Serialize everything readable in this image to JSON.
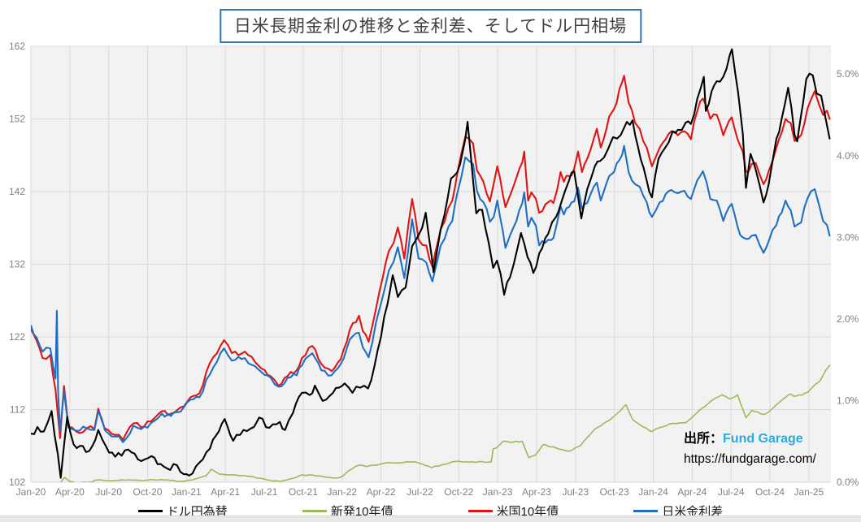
{
  "title": "日米長期金利の推移と金利差、そしてドル円相場",
  "source": {
    "prefix": "出所：",
    "name": "Fund Garage",
    "url": "https://fundgarage.com/"
  },
  "colors": {
    "usdjpy": "#000000",
    "jgb10y": "#9bbb59",
    "ust10y": "#e11414",
    "spread": "#1f70c1",
    "title_border": "#2e75b6",
    "title_text": "#404040",
    "source_name": "#29abe2",
    "plot_bg": "#f2f2f2",
    "grid": "#dadada",
    "axis_text": "#808080"
  },
  "chart_data": {
    "type": "line",
    "title": "日米長期金利の推移と金利差、そしてドル円相場",
    "x_unit": "months since Jan-2020",
    "x_domain": [
      0,
      61.7
    ],
    "x_tick_months": [
      0,
      3,
      6,
      9,
      12,
      15,
      18,
      21,
      24,
      27,
      30,
      33,
      36,
      39,
      42,
      45,
      48,
      51,
      54,
      57,
      60
    ],
    "x_tick_labels": [
      "Jan-20",
      "Apr-20",
      "Jul-20",
      "Oct-20",
      "Jan-21",
      "Apr-21",
      "Jul-21",
      "Oct-21",
      "Jan-22",
      "Apr-22",
      "Jul-22",
      "Oct-22",
      "Jan-23",
      "Apr-23",
      "Jul-23",
      "Oct-23",
      "Jan-24",
      "Apr-24",
      "Jul-24",
      "Oct-24",
      "Jan-25"
    ],
    "left_axis": {
      "min": 102,
      "max": 162,
      "tick_values": [
        102,
        112,
        122,
        132,
        142,
        152,
        162
      ],
      "tick_labels": [
        "102",
        "112",
        "122",
        "132",
        "142",
        "152",
        "162"
      ]
    },
    "right_axis": {
      "min": 0,
      "max": 5.34,
      "tick_values": [
        0,
        1,
        2,
        3,
        4,
        5
      ],
      "tick_labels": [
        "0.0%",
        "1.0%",
        "2.0%",
        "3.0%",
        "4.0%",
        "5.0%"
      ]
    },
    "grid": true,
    "legend_position": "bottom",
    "series": [
      {
        "name": "ドル円為替",
        "key": "usdjpy",
        "axis": "left",
        "color_key": "usdjpy",
        "x": [
          0,
          0.5,
          1,
          1.6,
          2.3,
          2.8,
          3.3,
          4,
          4.5,
          5.2,
          5.8,
          6.5,
          7.5,
          8.5,
          9.3,
          10,
          10.5,
          11,
          11.8,
          12.2,
          13,
          13.8,
          14.5,
          14.95,
          15.6,
          16.4,
          17.2,
          17.6,
          18.4,
          19.2,
          19.6,
          20.2,
          20.9,
          21.5,
          21.9,
          22.5,
          23.3,
          24.2,
          24.8,
          25.4,
          26,
          26.5,
          27,
          27.5,
          27.9,
          28.3,
          28.9,
          29.4,
          29.9,
          30.45,
          30.9,
          31.05,
          31.6,
          31.9,
          32.4,
          32.9,
          33.3,
          33.68,
          33.9,
          34.35,
          34.8,
          35.3,
          35.65,
          35.95,
          36.5,
          36.95,
          37.8,
          38.3,
          38.75,
          39.2,
          39.9,
          40.5,
          40.9,
          41.5,
          41.9,
          42.45,
          42.9,
          43.5,
          43.9,
          44.5,
          44.9,
          45.5,
          45.97,
          46.4,
          46.8,
          47.5,
          47.9,
          48.4,
          48.9,
          49.5,
          49.9,
          50.5,
          50.9,
          51.4,
          51.9,
          52.05,
          52.5,
          52.9,
          53.4,
          53.9,
          54.07,
          54.55,
          54.9,
          55.15,
          55.5,
          55.9,
          56.5,
          56.9,
          57.5,
          57.9,
          58.4,
          58.9,
          59.1,
          59.8,
          60.3,
          60.6,
          60.95,
          61.3,
          61.6
        ],
        "values": [
          108.7,
          109.6,
          109,
          111.8,
          102.6,
          111,
          107.2,
          107,
          106.3,
          109.2,
          106.9,
          105.5,
          106.5,
          104.9,
          105.6,
          104.5,
          103.9,
          104.5,
          103.1,
          102.9,
          104.7,
          106.6,
          109,
          110.7,
          107.7,
          109.2,
          109.6,
          110.9,
          109.5,
          110.3,
          109.2,
          111.5,
          114.3,
          114,
          115.3,
          113.2,
          114.3,
          115.6,
          114.3,
          115,
          114.9,
          118,
          122,
          126.5,
          130.5,
          127.5,
          128.8,
          134.5,
          136,
          139.1,
          133.2,
          130.9,
          136.8,
          138.8,
          143.8,
          144.7,
          147.5,
          151.6,
          147.5,
          139,
          139.5,
          135,
          131.5,
          132.5,
          127.8,
          130.2,
          136.3,
          133,
          130.8,
          133.5,
          136.2,
          138.5,
          140.5,
          143.5,
          144.8,
          138.3,
          142.3,
          145.5,
          146.2,
          147.8,
          149.5,
          149.8,
          151.6,
          151.8,
          148.3,
          143.5,
          141.2,
          146.5,
          148,
          150.3,
          150.5,
          151.5,
          151.3,
          154.8,
          157.8,
          153.1,
          155.8,
          157.2,
          157.8,
          160.8,
          161.6,
          155.5,
          150,
          142.5,
          147.2,
          145,
          140.5,
          143,
          149.3,
          152,
          156.3,
          149.8,
          148.9,
          157.5,
          158,
          155.5,
          155.2,
          152,
          149.3
        ]
      },
      {
        "name": "新発10年債",
        "key": "jgb10y",
        "axis": "right",
        "color_key": "jgb10y",
        "x": [
          0,
          1,
          1.9,
          2.3,
          2.6,
          3,
          3.5,
          4,
          4.5,
          5.2,
          6,
          6.5,
          7.5,
          8.5,
          9.5,
          10.5,
          11.5,
          12.5,
          13.5,
          13.9,
          14.5,
          15.5,
          16.5,
          17.5,
          18.5,
          19.2,
          20,
          20.9,
          21.5,
          22.5,
          23.5,
          24,
          24.5,
          25.3,
          25.9,
          26.5,
          26.9,
          27.5,
          28.5,
          29.4,
          30,
          30.9,
          31.5,
          32.5,
          33.5,
          34.5,
          35.5,
          35.65,
          35.9,
          36.4,
          36.9,
          37.9,
          38.4,
          38.9,
          39.5,
          40.5,
          41.5,
          42.4,
          42.93,
          43.5,
          44.5,
          45.5,
          45.9,
          46.4,
          47,
          47.9,
          48.5,
          49.5,
          50.5,
          51.5,
          52.5,
          53.3,
          53.9,
          54.5,
          55.15,
          55.6,
          56.5,
          56.9,
          57.5,
          58.5,
          58.9,
          59.5,
          59.9,
          60.5,
          60.9,
          61.3,
          61.6
        ],
        "values": [
          -0.01,
          -0.05,
          -0.12,
          0,
          0.06,
          0.01,
          -0.01,
          0,
          0,
          0.03,
          0.02,
          0.02,
          0.03,
          0.02,
          0.03,
          0.03,
          0.01,
          0.03,
          0.08,
          0.16,
          0.1,
          0.09,
          0.08,
          0.05,
          0.02,
          0.01,
          0.04,
          0.09,
          0.09,
          0.07,
          0.05,
          0.07,
          0.14,
          0.21,
          0.19,
          0.21,
          0.22,
          0.24,
          0.24,
          0.25,
          0.23,
          0.18,
          0.2,
          0.25,
          0.25,
          0.25,
          0.25,
          0.41,
          0.42,
          0.5,
          0.49,
          0.5,
          0.3,
          0.33,
          0.46,
          0.42,
          0.38,
          0.45,
          0.55,
          0.65,
          0.75,
          0.88,
          0.95,
          0.77,
          0.7,
          0.62,
          0.67,
          0.72,
          0.73,
          0.87,
          1,
          1.07,
          1.02,
          1.07,
          0.79,
          0.88,
          0.83,
          0.86,
          0.95,
          1.08,
          1.05,
          1.07,
          1.1,
          1.2,
          1.25,
          1.37,
          1.43
        ]
      },
      {
        "name": "米国10年債",
        "key": "ust10y",
        "axis": "right",
        "color_key": "ust10y",
        "x": [
          0,
          0.9,
          1.5,
          1.9,
          2.25,
          2.55,
          2.9,
          3.5,
          4.3,
          4.9,
          5.2,
          5.7,
          6.5,
          7.1,
          7.9,
          8.5,
          9.5,
          10.1,
          10.8,
          11.8,
          12.3,
          13,
          13.8,
          14.9,
          15.5,
          16.5,
          17.3,
          18.5,
          19.1,
          19.8,
          20.5,
          20.9,
          21.7,
          22.4,
          23.2,
          23.9,
          24.6,
          25.3,
          25.6,
          26.05,
          26.9,
          27.6,
          27.97,
          28.3,
          28.8,
          29.4,
          29.9,
          30.5,
          30.97,
          31.6,
          31.9,
          32.5,
          32.9,
          33.5,
          34.1,
          34.4,
          34.9,
          35.4,
          35.7,
          35.97,
          36.6,
          36.97,
          37.9,
          38.05,
          38.35,
          38.6,
          38.95,
          39.2,
          39.9,
          40.3,
          40.85,
          41.1,
          41.5,
          41.9,
          42.2,
          42.5,
          42.9,
          43.65,
          43.95,
          44.6,
          44.97,
          45.6,
          45.75,
          46.1,
          46.6,
          46.95,
          47.5,
          47.9,
          48.5,
          49.4,
          49.9,
          50.4,
          50.9,
          51.4,
          51.83,
          52.4,
          52.9,
          53.4,
          54.05,
          54.5,
          54.9,
          55.15,
          55.6,
          55.9,
          56.5,
          56.9,
          57.5,
          57.9,
          58.2,
          58.6,
          58.9,
          59.4,
          59.9,
          60.45,
          60.8,
          61.1,
          61.4,
          61.6
        ],
        "values": [
          1.88,
          1.52,
          1.56,
          1.13,
          0.54,
          1.18,
          0.68,
          0.62,
          0.66,
          0.65,
          0.9,
          0.66,
          0.58,
          0.52,
          0.72,
          0.67,
          0.78,
          0.87,
          0.84,
          0.93,
          1.04,
          1.09,
          1.46,
          1.74,
          1.58,
          1.6,
          1.47,
          1.3,
          1.18,
          1.3,
          1.37,
          1.52,
          1.67,
          1.45,
          1.36,
          1.51,
          1.87,
          2.04,
          1.85,
          1.72,
          2.35,
          2.83,
          2.93,
          3.12,
          2.74,
          3.47,
          2.97,
          2.9,
          2.64,
          3.1,
          3.19,
          3.45,
          3.8,
          4.23,
          4.15,
          3.82,
          3.68,
          3.44,
          3.66,
          3.87,
          3.37,
          3.52,
          3.92,
          4.05,
          3.45,
          3.55,
          3.47,
          3.3,
          3.43,
          3.42,
          3.8,
          3.68,
          3.75,
          3.84,
          4.05,
          3.8,
          3.96,
          4.33,
          4.1,
          4.48,
          4.57,
          4.9,
          4.98,
          4.65,
          4.4,
          4.33,
          4.1,
          3.87,
          4.1,
          4.3,
          4.25,
          4.3,
          4.2,
          4.55,
          4.7,
          4.45,
          4.5,
          4.25,
          4.47,
          4.2,
          4.05,
          3.8,
          3.9,
          3.91,
          3.65,
          3.81,
          4.1,
          4.28,
          4.45,
          4.4,
          4.18,
          4.25,
          4.58,
          4.79,
          4.62,
          4.5,
          4.55,
          4.45
        ]
      },
      {
        "name": "日米金利差",
        "key": "spread",
        "axis": "right",
        "color_key": "spread",
        "x": [
          0,
          0.9,
          1.5,
          1.9,
          2,
          2.1,
          2.25,
          2.55,
          2.9,
          3.5,
          4.3,
          4.9,
          5.2,
          5.7,
          6.5,
          7.1,
          7.9,
          8.5,
          9.5,
          10.1,
          10.8,
          11.8,
          12.3,
          13,
          13.8,
          14.9,
          15.5,
          16.5,
          17.3,
          18.5,
          19.1,
          19.8,
          20.5,
          20.9,
          21.7,
          22.4,
          23.2,
          23.9,
          24.6,
          25.3,
          25.6,
          26.05,
          26.9,
          27.6,
          27.97,
          28.3,
          28.8,
          29.4,
          29.9,
          30.5,
          30.97,
          31.6,
          31.9,
          32.5,
          32.9,
          33.5,
          34.1,
          34.4,
          34.9,
          35.4,
          35.7,
          35.97,
          36.6,
          36.97,
          37.9,
          38.05,
          38.35,
          38.6,
          38.95,
          39.2,
          39.9,
          40.3,
          40.85,
          41.1,
          41.5,
          41.9,
          42.2,
          42.5,
          42.9,
          43.65,
          43.95,
          44.6,
          44.97,
          45.6,
          45.75,
          46.1,
          46.6,
          46.95,
          47.5,
          47.9,
          48.5,
          49.4,
          49.9,
          50.4,
          50.9,
          51.4,
          51.83,
          52.4,
          52.9,
          53.4,
          54.05,
          54.5,
          54.9,
          55.15,
          55.6,
          55.9,
          56.5,
          56.9,
          57.5,
          57.9,
          58.2,
          58.6,
          58.9,
          59.4,
          59.9,
          60.45,
          60.8,
          61.1,
          61.4,
          61.6
        ],
        "values": [
          1.92,
          1.6,
          1.64,
          1.27,
          2.1,
          1.1,
          0.62,
          1.12,
          0.67,
          0.63,
          0.66,
          0.64,
          0.87,
          0.64,
          0.56,
          0.49,
          0.69,
          0.65,
          0.75,
          0.84,
          0.81,
          0.92,
          1.01,
          1.04,
          1.32,
          1.64,
          1.49,
          1.52,
          1.42,
          1.28,
          1.17,
          1.28,
          1.31,
          1.43,
          1.58,
          1.37,
          1.31,
          1.45,
          1.75,
          1.83,
          1.65,
          1.53,
          2.13,
          2.59,
          2.7,
          2.88,
          2.5,
          3.22,
          2.74,
          2.69,
          2.46,
          2.9,
          2.98,
          3.2,
          3.55,
          3.98,
          3.9,
          3.57,
          3.43,
          3.19,
          3.25,
          3.45,
          2.87,
          3.03,
          3.42,
          3.55,
          3.13,
          3.24,
          3.14,
          2.9,
          2.97,
          2.99,
          3.38,
          3.28,
          3.37,
          3.44,
          3.61,
          3.35,
          3.42,
          3.67,
          3.45,
          3.75,
          3.8,
          4.01,
          4.12,
          3.8,
          3.65,
          3.62,
          3.43,
          3.25,
          3.43,
          3.58,
          3.54,
          3.57,
          3.47,
          3.7,
          3.81,
          3.47,
          3.45,
          3.2,
          3.41,
          3.13,
          3,
          2.98,
          3.02,
          3.03,
          2.81,
          2.95,
          3.15,
          3.3,
          3.45,
          3.33,
          3.13,
          3.18,
          3.48,
          3.59,
          3.39,
          3.2,
          3.15,
          3.02
        ]
      }
    ]
  }
}
